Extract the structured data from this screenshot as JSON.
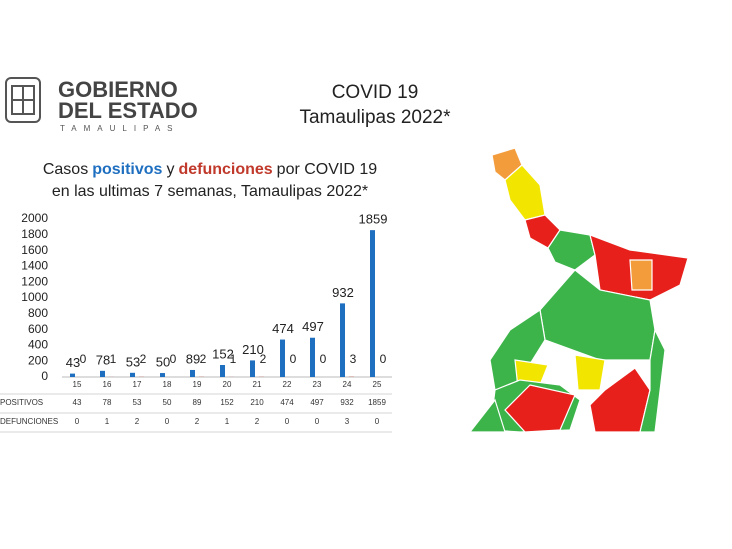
{
  "header": {
    "line1": "GOBIERNO",
    "line2": "DEL ESTADO",
    "line3": "TAMAULIPAS",
    "title1": "COVID 19",
    "title2": "Tamaulipas 2022*"
  },
  "chart_data": {
    "type": "bar",
    "title_line1": [
      "Casos",
      "positivos",
      "y",
      "defunciones",
      "por COVID 19"
    ],
    "title_line2": "en las ultimas 7 semanas, Tamaulipas 2022*",
    "categories": [
      "15",
      "16",
      "17",
      "18",
      "19",
      "20",
      "21",
      "22",
      "23",
      "24",
      "25"
    ],
    "series": [
      {
        "name": "POSITIVOS",
        "color": "#1f6fc0",
        "values": [
          43,
          78,
          53,
          50,
          89,
          152,
          210,
          474,
          497,
          932,
          1859
        ]
      },
      {
        "name": "DEFUNCIONES",
        "color": "#c0392b",
        "values": [
          0,
          1,
          2,
          0,
          2,
          1,
          2,
          0,
          0,
          3,
          0
        ]
      }
    ],
    "ylim": [
      0,
      2000
    ],
    "yticks": [
      0,
      200,
      400,
      600,
      800,
      1000,
      1200,
      1400,
      1600,
      1800,
      2000
    ],
    "grid": false
  }
}
